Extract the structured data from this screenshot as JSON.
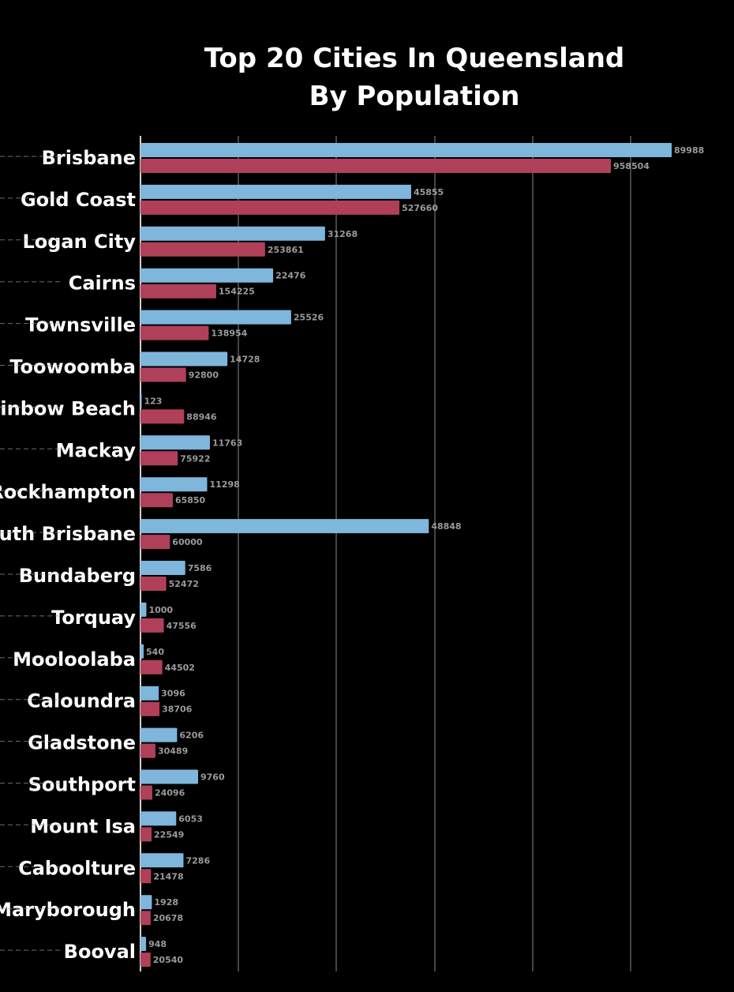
{
  "chart_data": {
    "type": "bar",
    "orientation": "horizontal",
    "title_lines": [
      "Top 20 Cities In Queensland",
      "By Population"
    ],
    "categories": [
      "Brisbane",
      "Gold Coast",
      "Logan City",
      "Cairns",
      "Townsville",
      "Toowoomba",
      "Rainbow Beach",
      "Mackay",
      "Rockhampton",
      "South Brisbane",
      "Bundaberg",
      "Torquay",
      "Mooloolaba",
      "Caloundra",
      "Gladstone",
      "Southport",
      "Mount Isa",
      "Caboolture",
      "Maryborough",
      "Booval"
    ],
    "series": [
      {
        "color": "#7eb6dc",
        "values": [
          89988,
          45855,
          31268,
          22476,
          25526,
          14728,
          123,
          11763,
          11298,
          48848,
          7586,
          1000,
          540,
          3096,
          6206,
          9760,
          6053,
          7286,
          1928,
          948
        ]
      },
      {
        "color": "#b0405a",
        "values": [
          958504,
          527660,
          253861,
          154225,
          138954,
          92800,
          88946,
          75922,
          65850,
          60000,
          52472,
          47556,
          44502,
          38706,
          30489,
          24096,
          22549,
          21478,
          20678,
          20540
        ]
      }
    ],
    "grid": true,
    "legend": "none",
    "colors": {
      "background": "#000000",
      "text": "#ffffff",
      "value_text": "#9a9a9a",
      "grid": "#8a8a8a",
      "leader": "#9a9a9a"
    }
  }
}
